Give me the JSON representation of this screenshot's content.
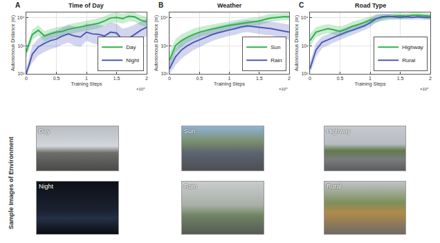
{
  "chart_data": [
    {
      "type": "line",
      "panel": "A",
      "title": "Time of Day",
      "x_label": "Training Steps",
      "y_label": "Autonomous Distance (m)",
      "x_multiplier": "×10⁶",
      "log": "y",
      "grid": true,
      "legend": "lower right",
      "xlim": [
        0,
        2
      ],
      "xticks": [
        0,
        0.5,
        1,
        1.5,
        2
      ],
      "ylim": [
        100,
        15000
      ],
      "yticks": [
        {
          "value": 100,
          "label": "10²"
        },
        {
          "value": 1000,
          "label": "10³"
        },
        {
          "value": 10000,
          "label": "10⁴"
        }
      ],
      "x": [
        0,
        0.1,
        0.2,
        0.3,
        0.4,
        0.5,
        0.6,
        0.7,
        0.8,
        0.9,
        1.0,
        1.1,
        1.2,
        1.3,
        1.4,
        1.5,
        1.6,
        1.7,
        1.8,
        1.9,
        2.0
      ],
      "series": [
        {
          "name": "Day",
          "color": "#2db24a",
          "values": [
            600,
            2500,
            3500,
            2200,
            2600,
            3000,
            3200,
            3800,
            4200,
            4600,
            5200,
            5600,
            6200,
            7500,
            9500,
            10000,
            9000,
            11000,
            10500,
            8000,
            7000
          ],
          "lower": [
            400,
            1600,
            2300,
            1400,
            1700,
            2000,
            2100,
            2500,
            2800,
            3000,
            3400,
            3700,
            4100,
            5000,
            6300,
            6700,
            6000,
            7300,
            7000,
            5300,
            4700
          ],
          "upper": [
            900,
            3800,
            5300,
            3300,
            3900,
            4500,
            4800,
            5700,
            6300,
            6900,
            7800,
            8400,
            9300,
            11000,
            14000,
            15000,
            13500,
            15000,
            15000,
            12000,
            10500
          ]
        },
        {
          "name": "Night",
          "color": "#4c58b8",
          "values": [
            100,
            500,
            900,
            1200,
            1500,
            1700,
            2200,
            2600,
            2200,
            2000,
            3000,
            2600,
            2500,
            2200,
            3000,
            2800,
            1600,
            1800,
            2500,
            3500,
            4500
          ],
          "lower": [
            100,
            250,
            450,
            600,
            750,
            850,
            1100,
            1300,
            1000,
            900,
            1500,
            1200,
            1100,
            900,
            1300,
            1200,
            700,
            800,
            1100,
            1600,
            2200
          ],
          "upper": [
            150,
            1000,
            1800,
            2400,
            3000,
            3400,
            4400,
            5200,
            4800,
            4500,
            6000,
            5500,
            5500,
            5000,
            6500,
            6000,
            4000,
            4500,
            5500,
            7000,
            9000
          ]
        }
      ]
    },
    {
      "type": "line",
      "panel": "B",
      "title": "Weather",
      "x_label": "Training Steps",
      "y_label": "Autonomous Distance (m)",
      "x_multiplier": "×10⁶",
      "log": "y",
      "grid": true,
      "legend": "lower right",
      "xlim": [
        0,
        2
      ],
      "xticks": [
        0,
        0.5,
        1,
        1.5,
        2
      ],
      "ylim": [
        100,
        15000
      ],
      "yticks": [
        {
          "value": 100,
          "label": "10²"
        },
        {
          "value": 1000,
          "label": "10³"
        },
        {
          "value": 10000,
          "label": "10⁴"
        }
      ],
      "x": [
        0,
        0.1,
        0.2,
        0.3,
        0.4,
        0.5,
        0.6,
        0.7,
        0.8,
        0.9,
        1.0,
        1.1,
        1.2,
        1.3,
        1.4,
        1.5,
        1.6,
        1.7,
        1.8,
        1.9,
        2.0
      ],
      "series": [
        {
          "name": "Sun",
          "color": "#2db24a",
          "values": [
            300,
            1000,
            1500,
            2000,
            2500,
            3000,
            3400,
            3800,
            4200,
            4600,
            5200,
            5600,
            6000,
            6300,
            7000,
            7500,
            8500,
            9500,
            10000,
            10500,
            10500
          ],
          "lower": [
            150,
            600,
            900,
            1300,
            1600,
            2000,
            2300,
            2600,
            2900,
            3200,
            3600,
            3900,
            4200,
            4400,
            5000,
            5400,
            6200,
            7000,
            7500,
            8000,
            8000
          ],
          "upper": [
            600,
            1700,
            2500,
            3200,
            4000,
            4600,
            5100,
            5600,
            6100,
            6600,
            7400,
            8000,
            8500,
            9000,
            9800,
            10500,
            12000,
            13500,
            14000,
            14500,
            14500
          ]
        },
        {
          "name": "Rain",
          "color": "#4c58b8",
          "values": [
            150,
            400,
            700,
            1000,
            1300,
            1600,
            2000,
            2400,
            2800,
            3200,
            3600,
            4000,
            4600,
            5000,
            4700,
            4400,
            4200,
            4000,
            3600,
            3300,
            3000
          ],
          "lower": [
            100,
            200,
            350,
            500,
            700,
            900,
            1100,
            1400,
            1700,
            1900,
            2200,
            2400,
            2800,
            3000,
            2800,
            2600,
            2400,
            2300,
            2000,
            1800,
            1600
          ],
          "upper": [
            250,
            800,
            1400,
            2000,
            2500,
            3000,
            3600,
            4200,
            4800,
            5400,
            6000,
            6600,
            7400,
            8000,
            7800,
            7400,
            7200,
            7000,
            6500,
            6000,
            5600
          ]
        }
      ]
    },
    {
      "type": "line",
      "panel": "C",
      "title": "Road Type",
      "x_label": "Training Steps",
      "y_label": "Autonomous Distance (m)",
      "x_multiplier": "×10⁶",
      "log": "y",
      "grid": true,
      "legend": "lower right",
      "xlim": [
        0,
        2
      ],
      "xticks": [
        0,
        0.5,
        1,
        1.5,
        2
      ],
      "ylim": [
        100,
        15000
      ],
      "yticks": [
        {
          "value": 100,
          "label": "10²"
        },
        {
          "value": 1000,
          "label": "10³"
        },
        {
          "value": 10000,
          "label": "10⁴"
        }
      ],
      "x": [
        0,
        0.1,
        0.2,
        0.3,
        0.4,
        0.5,
        0.6,
        0.7,
        0.8,
        0.9,
        1.0,
        1.1,
        1.2,
        1.3,
        1.4,
        1.5,
        1.6,
        1.7,
        1.8,
        1.9,
        2.0
      ],
      "series": [
        {
          "name": "Highway",
          "color": "#2db24a",
          "values": [
            1500,
            3000,
            3500,
            4000,
            3600,
            3200,
            3800,
            4800,
            5500,
            6500,
            8000,
            9000,
            10000,
            10500,
            11000,
            11500,
            11000,
            12000,
            12000,
            11500,
            11000
          ],
          "lower": [
            900,
            2000,
            2400,
            2800,
            2400,
            2100,
            2500,
            3200,
            3700,
            4500,
            5600,
            6500,
            7500,
            8000,
            8500,
            9000,
            8600,
            9500,
            9500,
            9000,
            8500
          ],
          "upper": [
            2500,
            4500,
            5200,
            5800,
            5300,
            4800,
            5600,
            7000,
            8000,
            9300,
            11000,
            12500,
            13000,
            13500,
            14000,
            14500,
            14000,
            15000,
            15000,
            14500,
            14000
          ]
        },
        {
          "name": "Rural",
          "color": "#4c58b8",
          "values": [
            150,
            700,
            1300,
            1600,
            2000,
            2400,
            3000,
            3500,
            4200,
            5000,
            6500,
            9000,
            10500,
            11000,
            10500,
            10000,
            10500,
            10000,
            10500,
            10000,
            10000
          ],
          "lower": [
            100,
            400,
            800,
            1000,
            1300,
            1600,
            2000,
            2400,
            2900,
            3500,
            4500,
            6500,
            8000,
            8800,
            8500,
            8200,
            8600,
            8200,
            8600,
            8200,
            8200
          ],
          "upper": [
            250,
            1200,
            2100,
            2600,
            3100,
            3600,
            4500,
            5100,
            6000,
            7100,
            9200,
            12500,
            13500,
            13500,
            13000,
            12500,
            13000,
            12500,
            13000,
            12500,
            12500
          ]
        }
      ]
    }
  ],
  "sample_images": {
    "title": "Sample Images of Environment",
    "panels": [
      [
        "Day",
        "Night"
      ],
      [
        "Sun",
        "Rain"
      ],
      [
        "Highway",
        "Rural"
      ]
    ]
  }
}
